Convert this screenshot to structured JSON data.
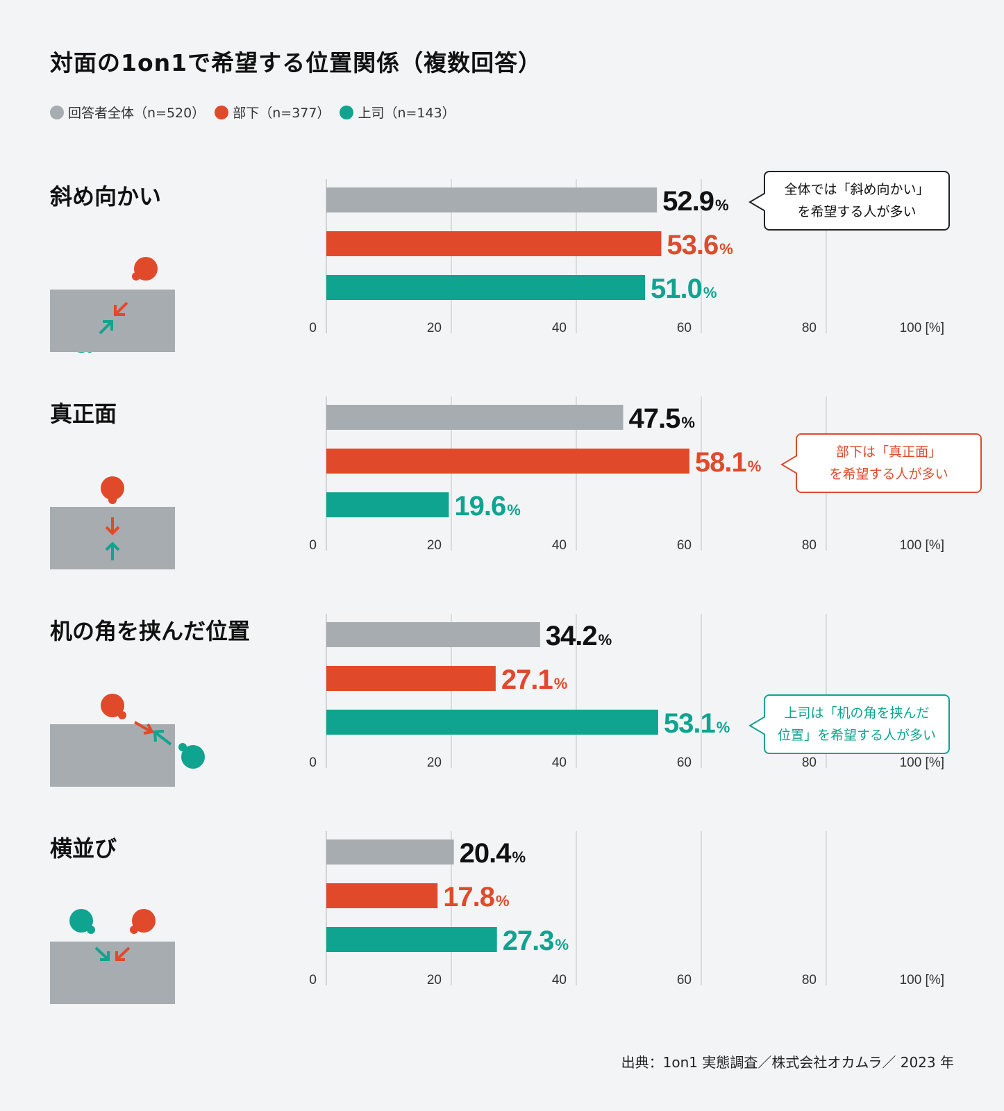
{
  "title": "対面の1on1で希望する位置関係（複数回答）",
  "colors": {
    "all": "#a6acaf",
    "sub": "#e04a2b",
    "boss": "#0ea490",
    "grid": "#d0d3d5"
  },
  "legend": [
    {
      "label": "回答者全体（n=520）",
      "color": "#a6acaf"
    },
    {
      "label": "部下（n=377）",
      "color": "#e04a2b"
    },
    {
      "label": "上司（n=143）",
      "color": "#0ea490"
    }
  ],
  "panels": [
    {
      "label": "斜め向かい",
      "callout": {
        "text": "全体では「斜め向かい」\nを希望する人が多い",
        "color": "#222222",
        "textColor": "#111111"
      }
    },
    {
      "label": "真正面",
      "callout": {
        "text": "部下は「真正面」\nを希望する人が多い",
        "color": "#e04a2b",
        "textColor": "#e04a2b"
      }
    },
    {
      "label": "机の角を挟んだ位置",
      "callout": {
        "text": "上司は「机の角を挟んだ\n位置」を希望する人が多い",
        "color": "#0ea490",
        "textColor": "#0ea490"
      }
    },
    {
      "label": "横並び",
      "callout": null
    }
  ],
  "chart_data": [
    {
      "type": "bar",
      "title": "斜め向かい",
      "series": [
        {
          "name": "回答者全体（n=520）",
          "value": 52.9
        },
        {
          "name": "部下（n=377）",
          "value": 53.6
        },
        {
          "name": "上司（n=143）",
          "value": 51.0
        }
      ],
      "value_labels": [
        "52.9",
        "53.6",
        "51.0"
      ],
      "xlim": [
        0,
        100
      ],
      "ticks": [
        "0",
        "20",
        "40",
        "60",
        "80",
        "100 [%]"
      ]
    },
    {
      "type": "bar",
      "title": "真正面",
      "series": [
        {
          "name": "回答者全体（n=520）",
          "value": 47.5
        },
        {
          "name": "部下（n=377）",
          "value": 58.1
        },
        {
          "name": "上司（n=143）",
          "value": 19.6
        }
      ],
      "value_labels": [
        "47.5",
        "58.1",
        "19.6"
      ],
      "xlim": [
        0,
        100
      ],
      "ticks": [
        "0",
        "20",
        "40",
        "60",
        "80",
        "100 [%]"
      ]
    },
    {
      "type": "bar",
      "title": "机の角を挟んだ位置",
      "series": [
        {
          "name": "回答者全体（n=520）",
          "value": 34.2
        },
        {
          "name": "部下（n=377）",
          "value": 27.1
        },
        {
          "name": "上司（n=143）",
          "value": 53.1
        }
      ],
      "value_labels": [
        "34.2",
        "27.1",
        "53.1"
      ],
      "xlim": [
        0,
        100
      ],
      "ticks": [
        "0",
        "20",
        "40",
        "60",
        "80",
        "100 [%]"
      ]
    },
    {
      "type": "bar",
      "title": "横並び",
      "series": [
        {
          "name": "回答者全体（n=520）",
          "value": 20.4
        },
        {
          "name": "部下（n=377）",
          "value": 17.8
        },
        {
          "name": "上司（n=143）",
          "value": 27.3
        }
      ],
      "value_labels": [
        "20.4",
        "17.8",
        "27.3"
      ],
      "xlim": [
        0,
        100
      ],
      "ticks": [
        "0",
        "20",
        "40",
        "60",
        "80",
        "100 [%]"
      ]
    }
  ],
  "unit_suffix": "%",
  "source": "出典：1on1 実態調査／株式会社オカムラ／ 2023 年"
}
